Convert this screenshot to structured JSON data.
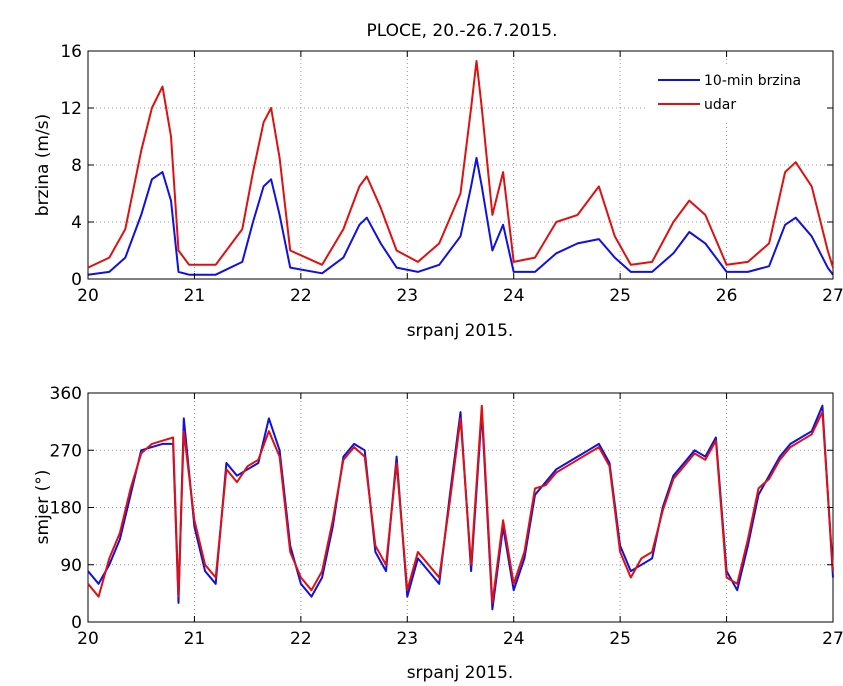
{
  "title": "PLOCE, 20.-26.7.2015.",
  "colors": {
    "speed": "#1010e0",
    "gust": "#e01010",
    "grid": "#9a9a9a",
    "axis": "#000000"
  },
  "chart_data": [
    {
      "type": "line",
      "title": "PLOCE, 20.-26.7.2015.",
      "xlabel": "srpanj 2015.",
      "ylabel": "brzina (m/s)",
      "xlim": [
        20,
        27
      ],
      "ylim": [
        0,
        16
      ],
      "xticks": [
        "20",
        "21",
        "22",
        "23",
        "24",
        "25",
        "26",
        "27"
      ],
      "yticks": [
        "0",
        "4",
        "8",
        "12",
        "16"
      ],
      "grid": true,
      "legend": "top-right",
      "series": [
        {
          "name": "10-min brzina",
          "color": "#1010e0",
          "x": [
            20.0,
            20.2,
            20.35,
            20.5,
            20.6,
            20.7,
            20.78,
            20.85,
            20.95,
            21.2,
            21.45,
            21.55,
            21.65,
            21.72,
            21.8,
            21.9,
            22.2,
            22.4,
            22.55,
            22.62,
            22.75,
            22.9,
            23.1,
            23.3,
            23.5,
            23.6,
            23.65,
            23.7,
            23.8,
            23.9,
            24.0,
            24.2,
            24.4,
            24.6,
            24.8,
            24.95,
            25.1,
            25.3,
            25.5,
            25.65,
            25.8,
            26.0,
            26.2,
            26.4,
            26.55,
            26.65,
            26.8,
            26.95,
            27.0
          ],
          "values": [
            0.3,
            0.5,
            1.5,
            4.5,
            7.0,
            7.5,
            5.5,
            0.5,
            0.3,
            0.3,
            1.2,
            4.0,
            6.5,
            7.0,
            4.5,
            0.8,
            0.4,
            1.5,
            3.8,
            4.3,
            2.5,
            0.8,
            0.5,
            1.0,
            3.0,
            6.5,
            8.5,
            6.5,
            2.0,
            3.8,
            0.5,
            0.5,
            1.8,
            2.5,
            2.8,
            1.5,
            0.5,
            0.5,
            1.8,
            3.3,
            2.5,
            0.5,
            0.5,
            0.9,
            3.8,
            4.3,
            3.0,
            0.8,
            0.3
          ]
        },
        {
          "name": "udar",
          "color": "#e01010",
          "x": [
            20.0,
            20.2,
            20.35,
            20.5,
            20.6,
            20.7,
            20.78,
            20.85,
            20.95,
            21.2,
            21.45,
            21.55,
            21.65,
            21.72,
            21.8,
            21.9,
            22.2,
            22.4,
            22.55,
            22.62,
            22.75,
            22.9,
            23.1,
            23.3,
            23.5,
            23.6,
            23.65,
            23.7,
            23.8,
            23.9,
            24.0,
            24.2,
            24.4,
            24.6,
            24.8,
            24.95,
            25.1,
            25.3,
            25.5,
            25.65,
            25.8,
            26.0,
            26.2,
            26.4,
            26.55,
            26.65,
            26.8,
            26.95,
            27.0
          ],
          "values": [
            0.8,
            1.5,
            3.5,
            9.0,
            12.0,
            13.5,
            10.0,
            2.0,
            1.0,
            1.0,
            3.5,
            7.5,
            11.0,
            12.0,
            8.5,
            2.0,
            1.0,
            3.5,
            6.5,
            7.2,
            5.0,
            2.0,
            1.2,
            2.5,
            6.0,
            12.0,
            15.3,
            12.0,
            4.5,
            7.5,
            1.2,
            1.5,
            4.0,
            4.5,
            6.5,
            3.0,
            1.0,
            1.2,
            4.0,
            5.5,
            4.5,
            1.0,
            1.2,
            2.5,
            7.5,
            8.2,
            6.5,
            2.0,
            0.8
          ]
        }
      ]
    },
    {
      "type": "line",
      "title": "",
      "xlabel": "srpanj 2015.",
      "ylabel": "smjer (°)",
      "xlim": [
        20,
        27
      ],
      "ylim": [
        0,
        360
      ],
      "xticks": [
        "20",
        "21",
        "22",
        "23",
        "24",
        "25",
        "26",
        "27"
      ],
      "yticks": [
        "0",
        "90",
        "180",
        "270",
        "360"
      ],
      "grid": true,
      "series": [
        {
          "color": "#1010e0",
          "x": [
            20.0,
            20.1,
            20.2,
            20.3,
            20.4,
            20.5,
            20.6,
            20.7,
            20.8,
            20.85,
            20.9,
            21.0,
            21.1,
            21.2,
            21.3,
            21.4,
            21.5,
            21.6,
            21.7,
            21.8,
            21.9,
            22.0,
            22.1,
            22.2,
            22.3,
            22.4,
            22.5,
            22.6,
            22.7,
            22.8,
            22.9,
            23.0,
            23.1,
            23.2,
            23.3,
            23.4,
            23.5,
            23.6,
            23.7,
            23.8,
            23.9,
            24.0,
            24.1,
            24.2,
            24.3,
            24.4,
            24.5,
            24.6,
            24.7,
            24.8,
            24.9,
            25.0,
            25.1,
            25.2,
            25.3,
            25.4,
            25.5,
            25.6,
            25.7,
            25.8,
            25.9,
            26.0,
            26.1,
            26.2,
            26.3,
            26.4,
            26.5,
            26.6,
            26.7,
            26.8,
            26.9,
            27.0
          ],
          "values": [
            80,
            60,
            90,
            130,
            200,
            270,
            275,
            280,
            280,
            30,
            320,
            150,
            80,
            60,
            250,
            230,
            240,
            250,
            320,
            270,
            120,
            60,
            40,
            70,
            150,
            260,
            280,
            270,
            110,
            80,
            260,
            40,
            100,
            80,
            60,
            200,
            330,
            80,
            330,
            20,
            150,
            50,
            100,
            200,
            220,
            240,
            250,
            260,
            270,
            280,
            250,
            120,
            80,
            90,
            100,
            180,
            230,
            250,
            270,
            260,
            290,
            80,
            50,
            120,
            200,
            230,
            260,
            280,
            290,
            300,
            340,
            70
          ]
        },
        {
          "color": "#e01010",
          "x": [
            20.0,
            20.1,
            20.2,
            20.3,
            20.4,
            20.5,
            20.6,
            20.7,
            20.8,
            20.85,
            20.9,
            21.0,
            21.1,
            21.2,
            21.3,
            21.4,
            21.5,
            21.6,
            21.7,
            21.8,
            21.9,
            22.0,
            22.1,
            22.2,
            22.3,
            22.4,
            22.5,
            22.6,
            22.7,
            22.8,
            22.9,
            23.0,
            23.1,
            23.2,
            23.3,
            23.4,
            23.5,
            23.6,
            23.7,
            23.8,
            23.9,
            24.0,
            24.1,
            24.2,
            24.3,
            24.4,
            24.5,
            24.6,
            24.7,
            24.8,
            24.9,
            25.0,
            25.1,
            25.2,
            25.3,
            25.4,
            25.5,
            25.6,
            25.7,
            25.8,
            25.9,
            26.0,
            26.1,
            26.2,
            26.3,
            26.4,
            26.5,
            26.6,
            26.7,
            26.8,
            26.9,
            27.0
          ],
          "values": [
            60,
            40,
            100,
            140,
            210,
            265,
            280,
            285,
            290,
            40,
            300,
            160,
            90,
            70,
            240,
            220,
            245,
            255,
            300,
            260,
            110,
            70,
            50,
            80,
            160,
            255,
            275,
            260,
            120,
            90,
            250,
            50,
            110,
            90,
            70,
            190,
            320,
            90,
            340,
            30,
            160,
            60,
            110,
            210,
            215,
            235,
            245,
            255,
            265,
            275,
            245,
            110,
            70,
            100,
            110,
            175,
            225,
            245,
            265,
            255,
            285,
            70,
            60,
            130,
            210,
            225,
            255,
            275,
            285,
            295,
            330,
            80
          ]
        }
      ]
    }
  ]
}
